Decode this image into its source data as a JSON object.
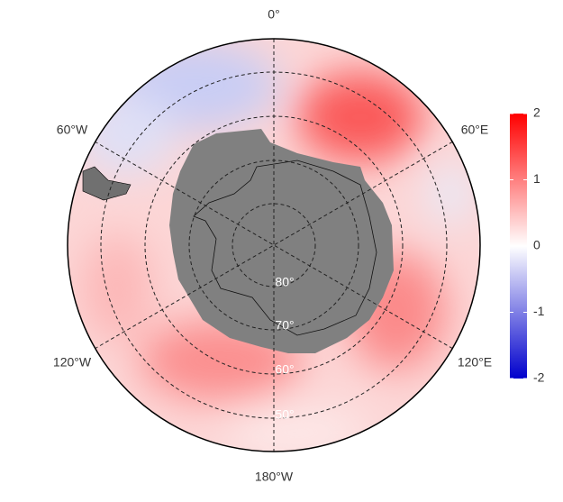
{
  "map": {
    "meridian_labels": [
      "0°",
      "60°E",
      "120°E",
      "180°W",
      "120°W",
      "60°W"
    ],
    "parallel_labels": [
      "80°",
      "70°",
      "60°",
      "50°"
    ]
  },
  "colorbar": {
    "lim": [
      -2,
      2
    ],
    "ticks": [
      2,
      1,
      0,
      -1,
      -2
    ],
    "colors": [
      "#0000cc",
      "#ffffff",
      "#ff0000"
    ]
  }
}
